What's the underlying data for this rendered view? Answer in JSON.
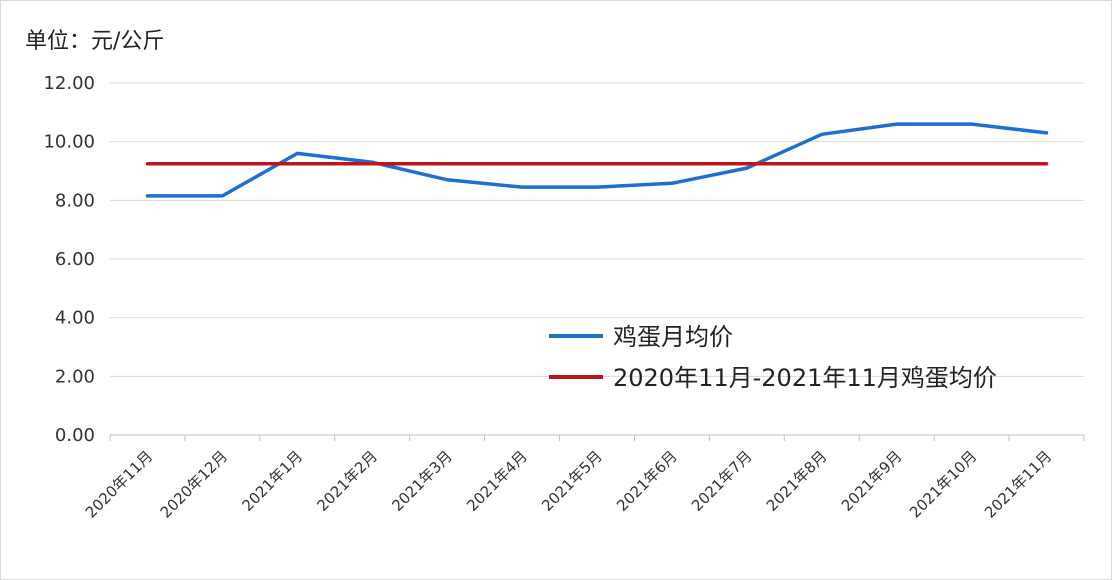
{
  "chart_data": {
    "type": "line",
    "title": "",
    "ylabel": "单位：元/公斤",
    "xlabel": "",
    "categories": [
      "2020年11月",
      "2020年12月",
      "2021年1月",
      "2021年2月",
      "2021年3月",
      "2021年4月",
      "2021年5月",
      "2021年6月",
      "2021年7月",
      "2021年8月",
      "2021年9月",
      "2021年10月",
      "2021年11月"
    ],
    "ylim": [
      0,
      12
    ],
    "yticks": [
      0,
      2,
      4,
      6,
      8,
      10,
      12
    ],
    "ytick_labels": [
      "0.00",
      "2.00",
      "4.00",
      "6.00",
      "8.00",
      "10.00",
      "12.00"
    ],
    "grid": true,
    "legend_position": "right-center",
    "series": [
      {
        "name": "鸡蛋月均价",
        "color": "#1f6fd1",
        "values": [
          8.15,
          8.15,
          9.6,
          9.3,
          8.7,
          8.45,
          8.45,
          8.58,
          9.1,
          10.25,
          10.6,
          10.6,
          10.3
        ]
      },
      {
        "name": "2020年11月-2021年11月鸡蛋均价",
        "color": "#c0141c",
        "values": [
          9.25,
          9.25,
          9.25,
          9.25,
          9.25,
          9.25,
          9.25,
          9.25,
          9.25,
          9.25,
          9.25,
          9.25,
          9.25
        ]
      }
    ]
  }
}
